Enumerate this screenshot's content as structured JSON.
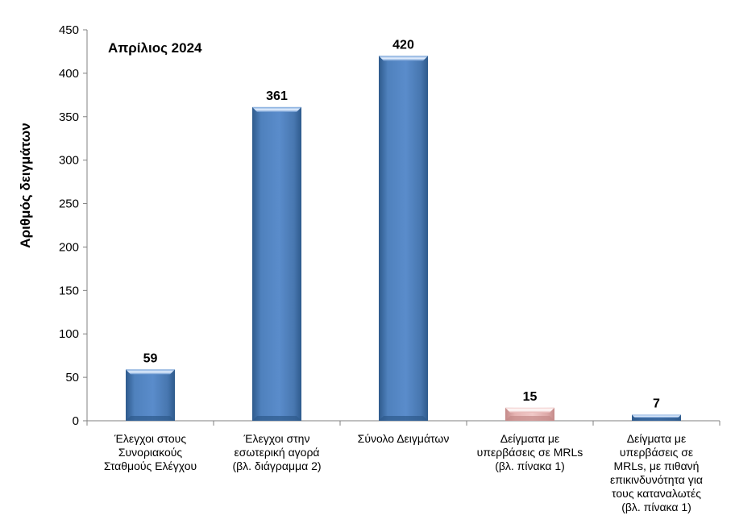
{
  "chart_data": {
    "type": "bar",
    "annotation": "Απρίλιος 2024",
    "ylabel": "Αριθμός δειγμάτων",
    "xlabel": "",
    "ylim": [
      0,
      450
    ],
    "yticks": [
      "0",
      "50",
      "100",
      "150",
      "200",
      "250",
      "300",
      "350",
      "400",
      "450"
    ],
    "grid": false,
    "categories": [
      "Έλεγχοι στους\nΣυνοριακούς\nΣταθμούς Ελέγχου",
      "Έλεγχοι στην\nεσωτερική αγορά\n(βλ. διάγραμμα 2)",
      "Σύνολο Δειγμάτων",
      "Δείγματα με\nυπερβάσεις σε MRLs\n(βλ. πίνακα 1)",
      "Δείγματα με\nυπερβάσεις σε\nMRLs, με πιθανή\nεπικινδυνότητα για\nτους καταναλωτές\n(βλ. πίνακα 1)"
    ],
    "values": [
      59,
      361,
      420,
      15,
      7
    ],
    "data_labels": [
      "59",
      "361",
      "420",
      "15",
      "7"
    ],
    "colors": {
      "bar_blue": "#4f81bd",
      "bar_blue_dark": "#2e5a8c",
      "bar_pink": "#e6b4b3",
      "bar_pink_dark": "#c48a89",
      "axis": "#808080"
    },
    "bar_colors": [
      "blue",
      "blue",
      "blue",
      "pink",
      "blue"
    ]
  }
}
